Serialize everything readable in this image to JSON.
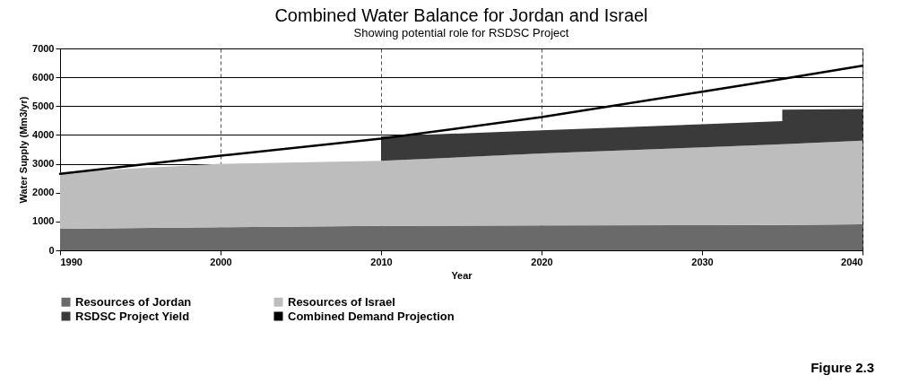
{
  "chart_data": {
    "type": "area",
    "stacked": true,
    "title": "Combined Water Balance for Jordan and Israel",
    "subtitle": "Showing potential role for RSDSC Project",
    "xlabel": "Year",
    "ylabel": "Water Supply  (Mm3/yr)",
    "x": [
      1990,
      2000,
      2010,
      2010,
      2020,
      2030,
      2035,
      2035,
      2040
    ],
    "series": [
      {
        "name": "Resources of Jordan",
        "color": "#6a6a6a",
        "values": [
          750,
          800,
          850,
          850,
          860,
          870,
          880,
          880,
          900
        ]
      },
      {
        "name": "Resources of Israel",
        "color": "#bdbdbd",
        "values": [
          1950,
          2200,
          2250,
          2250,
          2500,
          2700,
          2800,
          2800,
          2900
        ]
      },
      {
        "name": "RSDSC Project Yield",
        "color": "#3a3a3a",
        "values": [
          0,
          0,
          0,
          850,
          800,
          800,
          800,
          1200,
          1100
        ]
      },
      {
        "name": "Combined Demand Projection",
        "type": "line",
        "color": "#000000",
        "values": [
          2650,
          3280,
          3870,
          3870,
          4620,
          5500,
          5940,
          5940,
          6400
        ]
      }
    ],
    "xlim": [
      1990,
      2040
    ],
    "xticks": [
      1990,
      2000,
      2010,
      2020,
      2030,
      2040
    ],
    "ylim": [
      0,
      7000
    ],
    "yticks": [
      0,
      1000,
      2000,
      3000,
      4000,
      5000,
      6000,
      7000
    ],
    "grid": true,
    "legend": "bottom",
    "annotations": [
      "Figure 2.3"
    ]
  }
}
